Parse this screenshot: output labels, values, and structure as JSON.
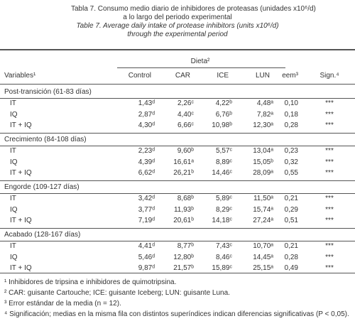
{
  "header": {
    "title_es": [
      "Tabla 7. Consumo medio diario de inhibidores de proteasas (unidades x10⁶/d)",
      "a lo largo del periodo experimental"
    ],
    "title_en": [
      "Table 7. Average daily intake of protease inhibitors (units x10⁶/d)",
      "through the experimental period"
    ]
  },
  "table": {
    "group_header": "Dieta²",
    "columns": [
      "Variables¹",
      "Control",
      "CAR",
      "ICE",
      "LUN",
      "eem³",
      "Sign.⁴"
    ],
    "sections": [
      {
        "title": "Post-transición (61-83 días)",
        "rows": [
          [
            "IT",
            "1,43ᵈ",
            "2,26ᶜ",
            "4,22ᵇ",
            "4,48ᵃ",
            "0,10",
            "***"
          ],
          [
            "IQ",
            "2,87ᵈ",
            "4,40ᶜ",
            "6,76ᵇ",
            "7,82ᵃ",
            "0,18",
            "***"
          ],
          [
            "IT + IQ",
            "4,30ᵈ",
            "6,66ᶜ",
            "10,98ᵇ",
            "12,30ᵃ",
            "0,28",
            "***"
          ]
        ]
      },
      {
        "title": "Crecimiento (84-108 días)",
        "rows": [
          [
            "IT",
            "2,23ᵈ",
            "9,60ᵇ",
            "5,57ᶜ",
            "13,04ᵃ",
            "0,23",
            "***"
          ],
          [
            "IQ",
            "4,39ᵈ",
            "16,61ᵃ",
            "8,89ᶜ",
            "15,05ᵇ",
            "0,32",
            "***"
          ],
          [
            "IT + IQ",
            "6,62ᵈ",
            "26,21ᵇ",
            "14,46ᶜ",
            "28,09ᵃ",
            "0,55",
            "***"
          ]
        ]
      },
      {
        "title": "Engorde (109-127 días)",
        "rows": [
          [
            "IT",
            "3,42ᵈ",
            "8,68ᵇ",
            "5,89ᶜ",
            "11,50ᵃ",
            "0,21",
            "***"
          ],
          [
            "IQ",
            "3,77ᵈ",
            "11,93ᵇ",
            "8,29ᶜ",
            "15,74ᵃ",
            "0,29",
            "***"
          ],
          [
            "IT + IQ",
            "7,19ᵈ",
            "20,61ᵇ",
            "14,18ᶜ",
            "27,24ᵃ",
            "0,51",
            "***"
          ]
        ]
      },
      {
        "title": "Acabado (128-167 días)",
        "rows": [
          [
            "IT",
            "4,41ᵈ",
            "8,77ᵇ",
            "7,43ᶜ",
            "10,70ᵃ",
            "0,21",
            "***"
          ],
          [
            "IQ",
            "5,46ᵈ",
            "12,80ᵇ",
            "8,46ᶜ",
            "14,45ᵃ",
            "0,28",
            "***"
          ],
          [
            "IT + IQ",
            "9,87ᵈ",
            "21,57ᵇ",
            "15,89ᶜ",
            "25,15ᵃ",
            "0,49",
            "***"
          ]
        ]
      }
    ]
  },
  "footnotes": [
    "¹ Inhibidores de tripsina e inhibidores de quimotripsina.",
    "² CAR: guisante Cartouche; ICE: guisante Iceberg; LUN: guisante Luna.",
    "³ Error estándar de la media (n = 12).",
    "⁴ Significación; medias en la misma fila con distintos superíndices indican diferencias significativas (P < 0,05)."
  ]
}
